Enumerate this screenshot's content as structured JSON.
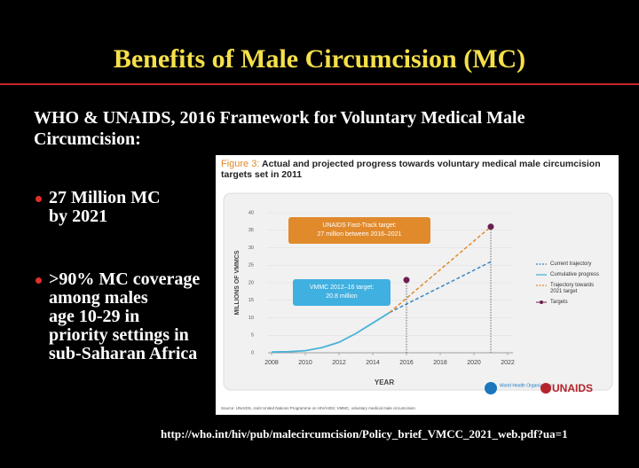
{
  "slide": {
    "title": "Benefits of Male Circumcision (MC)",
    "subtitle": [
      "WHO & UNAIDS, 2016 Framework for Voluntary Medical Male",
      "Circumcision:"
    ],
    "bullets": [
      [
        "27 Million MC",
        "by 2021"
      ],
      [
        ">90% MC coverage",
        "among males",
        "age 10-29 in",
        "priority settings in",
        "sub-Saharan Africa"
      ]
    ],
    "url": "http://who.int/hiv/pub/malecircumcision/Policy_brief_VMCC_2021_web.pdf?ua=1"
  },
  "chart_data": {
    "type": "line",
    "figure_label": "Figure 3:",
    "title": [
      "Actual and projected progress towards voluntary medical male circumcision",
      "targets set in 2011"
    ],
    "x_label": "YEAR",
    "y_label": "MILLIONS OF VMMCS",
    "xlim": [
      2008,
      2022
    ],
    "xticks": [
      2008,
      2010,
      2012,
      2014,
      2016,
      2018,
      2020,
      2022
    ],
    "ylim": [
      0,
      40
    ],
    "yticks": [
      0,
      5,
      10,
      15,
      20,
      25,
      30,
      35,
      40
    ],
    "series": [
      {
        "name": "Current trajectory",
        "color": "#3a87c8",
        "style": "dashed",
        "x": [
          2015,
          2021
        ],
        "values": [
          11.5,
          26
        ]
      },
      {
        "name": "Cumulative progress",
        "color": "#4bb3d6",
        "style": "solid",
        "x": [
          2008,
          2009,
          2010,
          2011,
          2012,
          2013,
          2014,
          2015
        ],
        "values": [
          0.2,
          0.3,
          0.6,
          1.5,
          3,
          5.5,
          8.5,
          11.5
        ]
      },
      {
        "name": "Trajectory towards 2021 target",
        "color": "#e08a2c",
        "style": "dashed",
        "x": [
          2015,
          2021
        ],
        "values": [
          11.5,
          36
        ]
      },
      {
        "name": "Targets",
        "color": "#6b1f52",
        "style": "points",
        "x": [
          2016,
          2021
        ],
        "values": [
          20.8,
          36
        ]
      }
    ],
    "annotations": [
      {
        "text": [
          "UNAIDS Fast-Track target:",
          "27 million between 2016–2021"
        ],
        "color": "#e08a2c"
      },
      {
        "text": [
          "VMMC 2012–16 target:",
          "20.8 million"
        ],
        "color": "#3fb0e0"
      }
    ],
    "logos": [
      "World Health Organization",
      "UNAIDS"
    ],
    "source": "Source: UNAIDS, Joint United Nations Programme on HIV/AIDS; VMMC, voluntary medical male circumcision"
  }
}
